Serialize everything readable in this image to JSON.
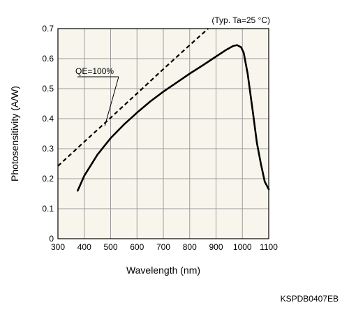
{
  "chart_data": {
    "type": "line",
    "condition": "(Typ. Ta=25 °C)",
    "xlabel": "Wavelength (nm)",
    "ylabel": "Photosensitivity (A/W)",
    "code": "KSPDB0407EB",
    "xlim": [
      300,
      1100
    ],
    "ylim": [
      0,
      0.7
    ],
    "xticks": [
      300,
      400,
      500,
      600,
      700,
      800,
      900,
      1000,
      1100
    ],
    "yticks": [
      0,
      0.1,
      0.2,
      0.3,
      0.4,
      0.5,
      0.6,
      0.7
    ],
    "ytick_labels": [
      "0",
      "0.1",
      "0.2",
      "0.3",
      "0.4",
      "0.5",
      "0.6",
      "0.7"
    ],
    "grid": true,
    "plot_background": "#f8f6ec",
    "series": [
      {
        "style": "solid",
        "color": "#000000",
        "points": [
          [
            375,
            0.16
          ],
          [
            400,
            0.21
          ],
          [
            450,
            0.28
          ],
          [
            500,
            0.335
          ],
          [
            550,
            0.38
          ],
          [
            600,
            0.42
          ],
          [
            650,
            0.457
          ],
          [
            700,
            0.49
          ],
          [
            750,
            0.52
          ],
          [
            800,
            0.55
          ],
          [
            850,
            0.578
          ],
          [
            900,
            0.607
          ],
          [
            940,
            0.63
          ],
          [
            965,
            0.642
          ],
          [
            980,
            0.645
          ],
          [
            995,
            0.638
          ],
          [
            1005,
            0.62
          ],
          [
            1020,
            0.55
          ],
          [
            1040,
            0.42
          ],
          [
            1055,
            0.32
          ],
          [
            1070,
            0.25
          ],
          [
            1085,
            0.19
          ],
          [
            1100,
            0.165
          ]
        ]
      },
      {
        "name": "QE=100%",
        "style": "dashed",
        "color": "#000000",
        "points": [
          [
            300,
            0.242
          ],
          [
            400,
            0.323
          ],
          [
            500,
            0.403
          ],
          [
            600,
            0.484
          ],
          [
            700,
            0.565
          ],
          [
            800,
            0.645
          ],
          [
            870,
            0.7
          ]
        ]
      }
    ],
    "annotation": {
      "text": "QE=100%",
      "at": [
        478,
        0.376
      ]
    }
  }
}
